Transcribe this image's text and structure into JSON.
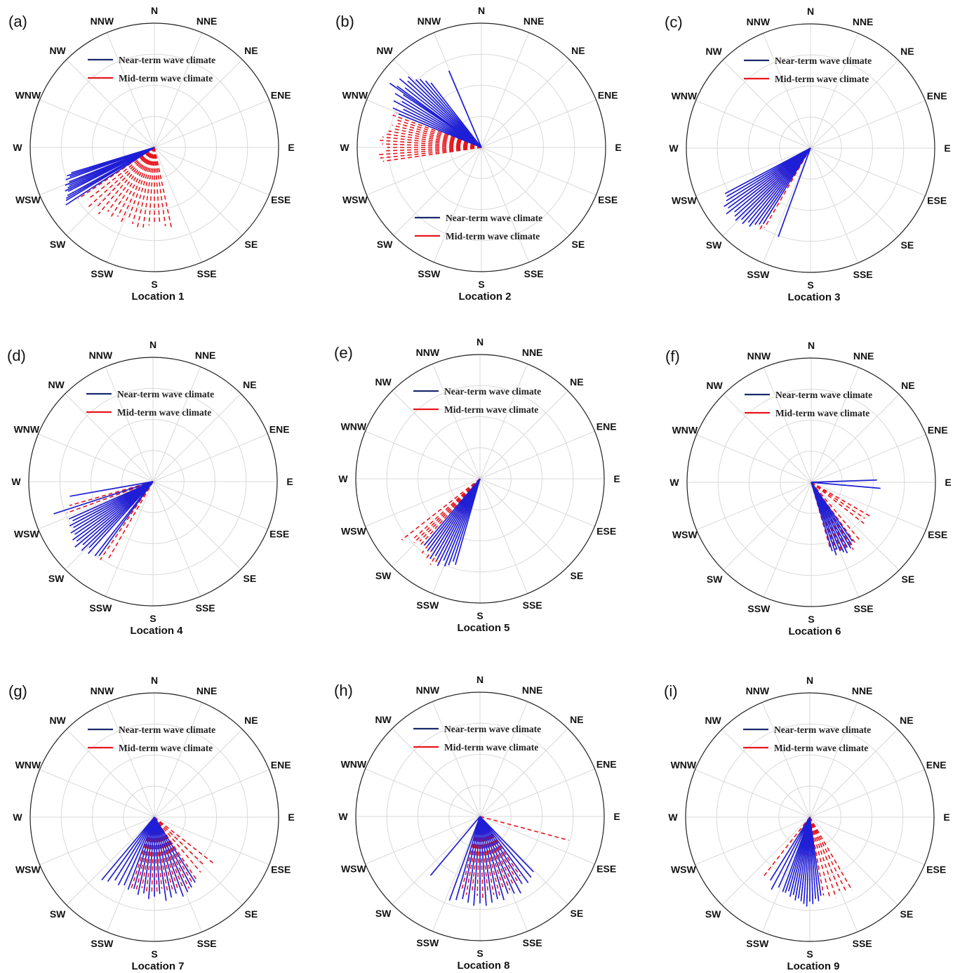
{
  "directions": [
    "N",
    "NNE",
    "NE",
    "ENE",
    "E",
    "ESE",
    "SE",
    "SSE",
    "S",
    "SSW",
    "SW",
    "WSW",
    "W",
    "WNW",
    "NW",
    "NNW"
  ],
  "legend": {
    "near_term": "Near-term wave climate",
    "mid_term": "Mid-term wave climate"
  },
  "colors": {
    "near_term": "#1f1fd6",
    "mid_term": "#e8151b",
    "grid": "#d9d9d9",
    "outer_ring": "#222222"
  },
  "chart_data": [
    {
      "type": "polar-direction",
      "panel": "(a)",
      "title": "Location 1",
      "legend_placement": "top",
      "near_term": {
        "directions_deg": [
          237,
          239,
          240,
          241,
          243,
          244,
          245,
          246,
          247,
          248,
          250,
          251,
          252,
          253
        ],
        "lengths": [
          0.85,
          0.83,
          0.82,
          0.8,
          0.78,
          0.8,
          0.77,
          0.75,
          0.78,
          0.74,
          0.76,
          0.72,
          0.74,
          0.7
        ]
      },
      "mid_term": {
        "directions_deg": [
          200,
          204,
          208,
          212,
          216,
          220,
          224,
          228,
          232,
          236,
          240,
          244,
          248,
          168,
          172,
          176,
          180,
          184,
          188,
          192,
          196
        ],
        "lengths": [
          0.62,
          0.66,
          0.63,
          0.68,
          0.64,
          0.7,
          0.66,
          0.72,
          0.68,
          0.74,
          0.7,
          0.72,
          0.68,
          0.66,
          0.64,
          0.62,
          0.6,
          0.63,
          0.65,
          0.67,
          0.64
        ]
      }
    },
    {
      "type": "polar-direction",
      "panel": "(b)",
      "title": "Location 2",
      "legend_placement": "bottom",
      "near_term": {
        "directions_deg": [
          292,
          294,
          296,
          298,
          300,
          302,
          304,
          306,
          308,
          310,
          312,
          314,
          316,
          318,
          337,
          320,
          322,
          305
        ],
        "lengths": [
          0.72,
          0.78,
          0.7,
          0.8,
          0.74,
          0.82,
          0.76,
          0.84,
          0.78,
          0.86,
          0.8,
          0.82,
          0.76,
          0.74,
          0.67,
          0.7,
          0.66,
          0.9
        ]
      },
      "mid_term": {
        "directions_deg": [
          262,
          264,
          266,
          268,
          270,
          272,
          274,
          276,
          278,
          280,
          282,
          284,
          286,
          288,
          290,
          292
        ],
        "lengths": [
          0.8,
          0.82,
          0.84,
          0.78,
          0.76,
          0.8,
          0.82,
          0.8,
          0.78,
          0.76,
          0.72,
          0.74,
          0.7,
          0.72,
          0.76,
          0.74
        ]
      }
    },
    {
      "type": "polar-direction",
      "panel": "(c)",
      "title": "Location 3",
      "legend_placement": "top",
      "near_term": {
        "directions_deg": [
          212,
          214,
          216,
          218,
          220,
          222,
          224,
          226,
          228,
          230,
          232,
          234,
          236,
          238,
          240,
          242,
          200
        ],
        "lengths": [
          0.72,
          0.74,
          0.76,
          0.8,
          0.78,
          0.82,
          0.8,
          0.84,
          0.82,
          0.8,
          0.86,
          0.82,
          0.84,
          0.8,
          0.78,
          0.78,
          0.76
        ]
      },
      "mid_term": {
        "directions_deg": [
          210,
          212,
          214,
          216,
          218,
          220,
          222,
          224,
          226,
          228,
          230,
          232,
          234,
          236
        ],
        "lengths": [
          0.74,
          0.78,
          0.72,
          0.76,
          0.7,
          0.74,
          0.68,
          0.72,
          0.7,
          0.66,
          0.7,
          0.68,
          0.72,
          0.66
        ]
      }
    },
    {
      "type": "polar-direction",
      "panel": "(d)",
      "title": "Location 4",
      "legend_placement": "top",
      "near_term": {
        "directions_deg": [
          252,
          260,
          222,
          224,
          226,
          228,
          230,
          232,
          234,
          236,
          238,
          240,
          242,
          244,
          246,
          216,
          218
        ],
        "lengths": [
          0.84,
          0.68,
          0.78,
          0.74,
          0.8,
          0.76,
          0.82,
          0.78,
          0.8,
          0.76,
          0.78,
          0.74,
          0.76,
          0.72,
          0.74,
          0.74,
          0.76
        ]
      },
      "mid_term": {
        "directions_deg": [
          210,
          214,
          218,
          222,
          226,
          230,
          234,
          238,
          242,
          246,
          250,
          254
        ],
        "lengths": [
          0.72,
          0.76,
          0.7,
          0.74,
          0.68,
          0.72,
          0.66,
          0.7,
          0.68,
          0.72,
          0.74,
          0.7
        ]
      }
    },
    {
      "type": "polar-direction",
      "panel": "(e)",
      "title": "Location 5",
      "legend_placement": "top",
      "near_term": {
        "directions_deg": [
          200,
          202,
          204,
          206,
          208,
          210,
          212,
          214,
          216,
          218,
          220,
          196,
          198
        ],
        "lengths": [
          0.74,
          0.76,
          0.72,
          0.78,
          0.74,
          0.72,
          0.76,
          0.7,
          0.72,
          0.68,
          0.7,
          0.72,
          0.7
        ]
      },
      "mid_term": {
        "directions_deg": [
          206,
          208,
          210,
          212,
          214,
          216,
          218,
          220,
          222,
          224,
          226,
          228,
          232
        ],
        "lengths": [
          0.78,
          0.76,
          0.8,
          0.74,
          0.78,
          0.72,
          0.76,
          0.7,
          0.72,
          0.7,
          0.74,
          0.72,
          0.8
        ]
      }
    },
    {
      "type": "polar-direction",
      "panel": "(f)",
      "title": "Location 6",
      "legend_placement": "top",
      "near_term": {
        "directions_deg": [
          95,
          88,
          145,
          147,
          149,
          151,
          153,
          155,
          157,
          159,
          161,
          163
        ],
        "lengths": [
          0.56,
          0.53,
          0.58,
          0.6,
          0.62,
          0.6,
          0.64,
          0.62,
          0.6,
          0.58,
          0.62,
          0.58
        ]
      },
      "mid_term": {
        "directions_deg": [
          120,
          124,
          128,
          140,
          144,
          148,
          152,
          156,
          160,
          164
        ],
        "lengths": [
          0.56,
          0.52,
          0.54,
          0.6,
          0.62,
          0.64,
          0.62,
          0.6,
          0.58,
          0.56
        ]
      }
    },
    {
      "type": "polar-direction",
      "panel": "(g)",
      "title": "Location 7",
      "legend_placement": "top",
      "near_term": {
        "directions_deg": [
          148,
          152,
          156,
          160,
          164,
          168,
          172,
          176,
          180,
          184,
          188,
          192,
          196,
          200,
          204,
          208,
          212,
          216,
          220
        ],
        "lengths": [
          0.62,
          0.64,
          0.66,
          0.68,
          0.64,
          0.66,
          0.68,
          0.62,
          0.64,
          0.66,
          0.62,
          0.64,
          0.6,
          0.62,
          0.6,
          0.62,
          0.6,
          0.64,
          0.66
        ]
      },
      "mid_term": {
        "directions_deg": [
          128,
          134,
          140,
          146,
          150,
          154,
          158,
          162,
          166,
          170,
          174,
          178,
          182,
          186,
          190,
          194,
          198
        ],
        "lengths": [
          0.6,
          0.56,
          0.58,
          0.62,
          0.6,
          0.64,
          0.62,
          0.6,
          0.62,
          0.6,
          0.58,
          0.6,
          0.62,
          0.6,
          0.58,
          0.6,
          0.62
        ]
      }
    },
    {
      "type": "polar-direction",
      "panel": "(h)",
      "title": "Location 8",
      "legend_placement": "top",
      "near_term": {
        "directions_deg": [
          136,
          140,
          144,
          148,
          152,
          156,
          160,
          164,
          168,
          172,
          176,
          180,
          184,
          188,
          192,
          196,
          200,
          220
        ],
        "lengths": [
          0.62,
          0.64,
          0.66,
          0.64,
          0.7,
          0.68,
          0.66,
          0.7,
          0.68,
          0.7,
          0.72,
          0.7,
          0.72,
          0.7,
          0.68,
          0.7,
          0.72,
          0.62
        ]
      },
      "mid_term": {
        "directions_deg": [
          105,
          140,
          146,
          150,
          154,
          158,
          162,
          166,
          170,
          174,
          178,
          182,
          186,
          190,
          194
        ],
        "lengths": [
          0.74,
          0.6,
          0.58,
          0.62,
          0.6,
          0.64,
          0.62,
          0.66,
          0.64,
          0.62,
          0.66,
          0.64,
          0.62,
          0.64,
          0.6
        ]
      }
    },
    {
      "type": "polar-direction",
      "panel": "(i)",
      "title": "Location 9",
      "legend_placement": "top",
      "near_term": {
        "directions_deg": [
          172,
          174,
          176,
          178,
          180,
          182,
          184,
          186,
          188,
          190,
          192,
          194,
          196,
          198,
          200,
          204,
          208,
          212
        ],
        "lengths": [
          0.64,
          0.68,
          0.66,
          0.7,
          0.68,
          0.72,
          0.7,
          0.68,
          0.66,
          0.68,
          0.64,
          0.66,
          0.62,
          0.64,
          0.64,
          0.62,
          0.66,
          0.6
        ]
      },
      "mid_term": {
        "directions_deg": [
          218,
          150,
          154,
          158,
          162,
          166,
          170,
          174,
          178,
          182,
          186,
          190,
          194
        ],
        "lengths": [
          0.62,
          0.68,
          0.66,
          0.64,
          0.68,
          0.66,
          0.64,
          0.66,
          0.68,
          0.66,
          0.64,
          0.62,
          0.6
        ]
      }
    }
  ]
}
